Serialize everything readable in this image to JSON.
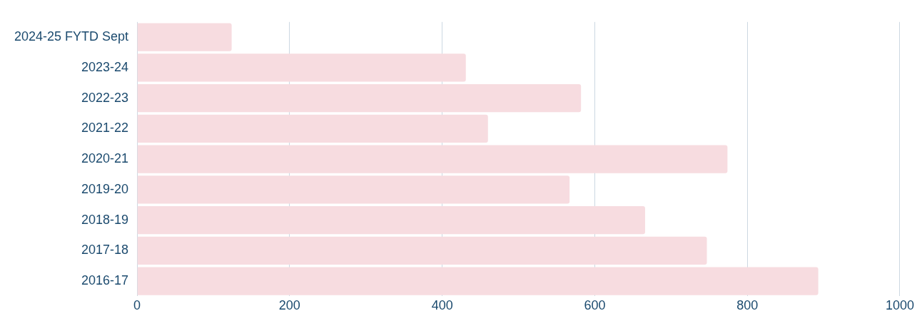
{
  "chart_data": {
    "type": "bar",
    "orientation": "horizontal",
    "categories": [
      "2024-25 FYTD Sept",
      "2023-24",
      "2022-23",
      "2021-22",
      "2020-21",
      "2019-20",
      "2018-19",
      "2017-18",
      "2016-17"
    ],
    "values": [
      124,
      431,
      582,
      460,
      774,
      567,
      666,
      747,
      893
    ],
    "color": "#f7dce0",
    "xlim": [
      0,
      1000
    ],
    "xticks": [
      0,
      200,
      400,
      600,
      800,
      1000
    ],
    "grid": "x"
  }
}
